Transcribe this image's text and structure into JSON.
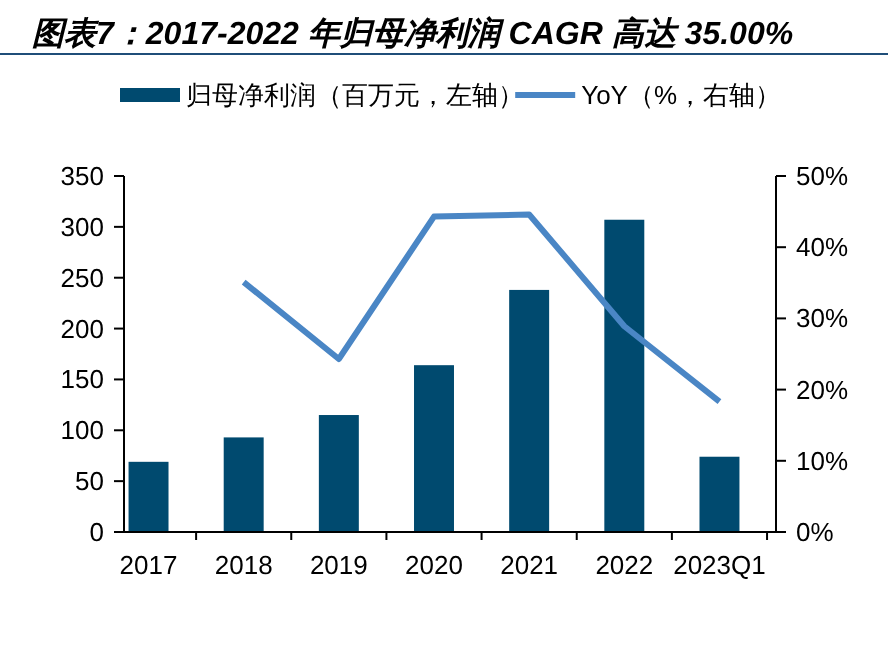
{
  "chart_data": {
    "type": "bar",
    "title": "图表7：2017-2022 年归母净利润 CAGR 高达 35.00%",
    "categories": [
      "2017",
      "2018",
      "2019",
      "2020",
      "2021",
      "2022",
      "2023Q1"
    ],
    "series": [
      {
        "name": "归母净利润（百万元，左轴）",
        "color": "#004a6f",
        "values": [
          69,
          93,
          115,
          164,
          238,
          307,
          74
        ]
      },
      {
        "name": "YoY（%，右轴）",
        "type": "line",
        "axis": "y2",
        "color": "#4a86c5",
        "values": [
          null,
          35.1,
          24.3,
          44.3,
          44.6,
          28.9,
          18.3
        ]
      }
    ],
    "ylim": [
      0,
      350
    ],
    "yticks": [
      0,
      50,
      100,
      150,
      200,
      250,
      300,
      350
    ],
    "y2lim": [
      0,
      50
    ],
    "y2ticks": [
      {
        "value": 0,
        "label": "0%"
      },
      {
        "value": 10,
        "label": "10%"
      },
      {
        "value": 20,
        "label": "20%"
      },
      {
        "value": 30,
        "label": "30%"
      },
      {
        "value": 40,
        "label": "40%"
      },
      {
        "value": 50,
        "label": "50%"
      }
    ],
    "legend": "top",
    "grid": false,
    "marker": "none",
    "line_style": "solid"
  }
}
